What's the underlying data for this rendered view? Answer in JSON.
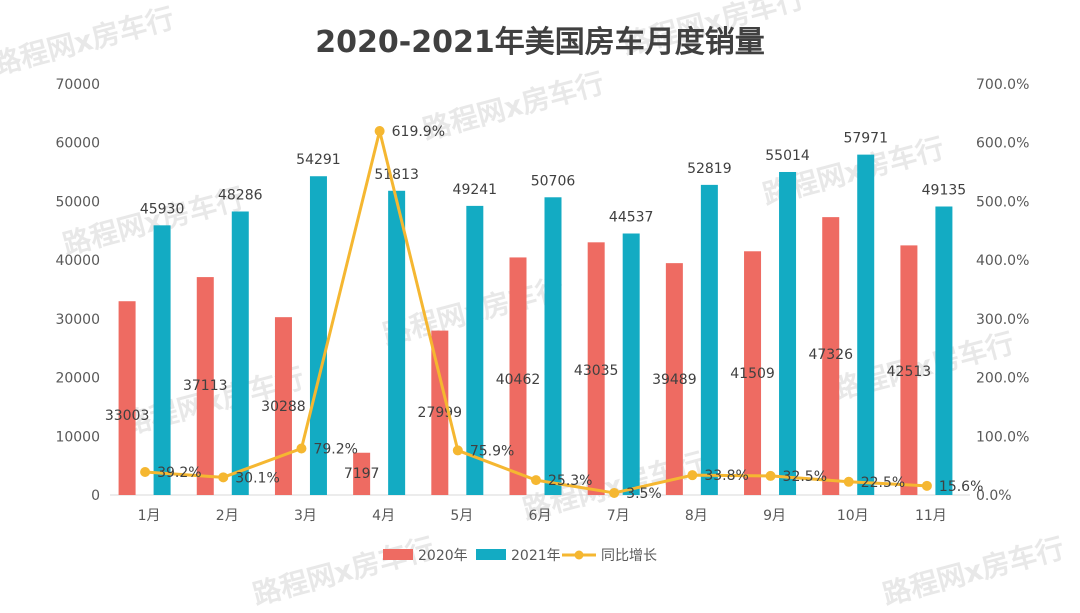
{
  "watermark": "路程网x房车行",
  "colors": {
    "bar2020": "#EE6B62",
    "bar2021": "#13ABC3",
    "growth": "#F5B731",
    "text": "#595959",
    "title": "#404040",
    "grid": "#D9D9D9"
  },
  "chart_data": {
    "type": "bar",
    "title": "2020-2021年美国房车月度销量",
    "categories": [
      "1月",
      "2月",
      "3月",
      "4月",
      "5月",
      "6月",
      "7月",
      "8月",
      "9月",
      "10月",
      "11月"
    ],
    "series": [
      {
        "name": "2020年",
        "type": "bar",
        "values": [
          33003,
          37113,
          30288,
          7197,
          27999,
          40462,
          43035,
          39489,
          41509,
          47326,
          42513
        ],
        "labels": [
          "33003",
          "37113",
          "30288",
          "7197",
          "27999",
          "40462",
          "43035",
          "39489",
          "41509",
          "47326",
          "42513"
        ]
      },
      {
        "name": "2021年",
        "type": "bar",
        "values": [
          45930,
          48286,
          54291,
          51813,
          49241,
          50706,
          44537,
          52819,
          55014,
          57971,
          49135
        ],
        "labels": [
          "45930",
          "48286",
          "54291",
          "51813",
          "49241",
          "50706",
          "44537",
          "52819",
          "55014",
          "57971",
          "49135"
        ]
      },
      {
        "name": "同比增长",
        "type": "line",
        "axis": "right",
        "values": [
          39.2,
          30.1,
          79.2,
          619.9,
          75.9,
          25.3,
          3.5,
          33.8,
          32.5,
          22.5,
          15.6
        ],
        "labels": [
          "39.2%",
          "30.1%",
          "79.2%",
          "619.9%",
          "75.9%",
          "25.3%",
          "3.5%",
          "33.8%",
          "32.5%",
          "22.5%",
          "15.6%"
        ]
      }
    ],
    "ylim": [
      0,
      70000
    ],
    "y2lim": [
      0,
      700
    ],
    "yticks": [
      "0",
      "10000",
      "20000",
      "30000",
      "40000",
      "50000",
      "60000",
      "70000"
    ],
    "y2ticks": [
      "0.0%",
      "100.0%",
      "200.0%",
      "300.0%",
      "400.0%",
      "500.0%",
      "600.0%",
      "700.0%"
    ],
    "legend": [
      "2020年",
      "2021年",
      "同比增长"
    ],
    "legend_position": "bottom",
    "grid": false
  }
}
